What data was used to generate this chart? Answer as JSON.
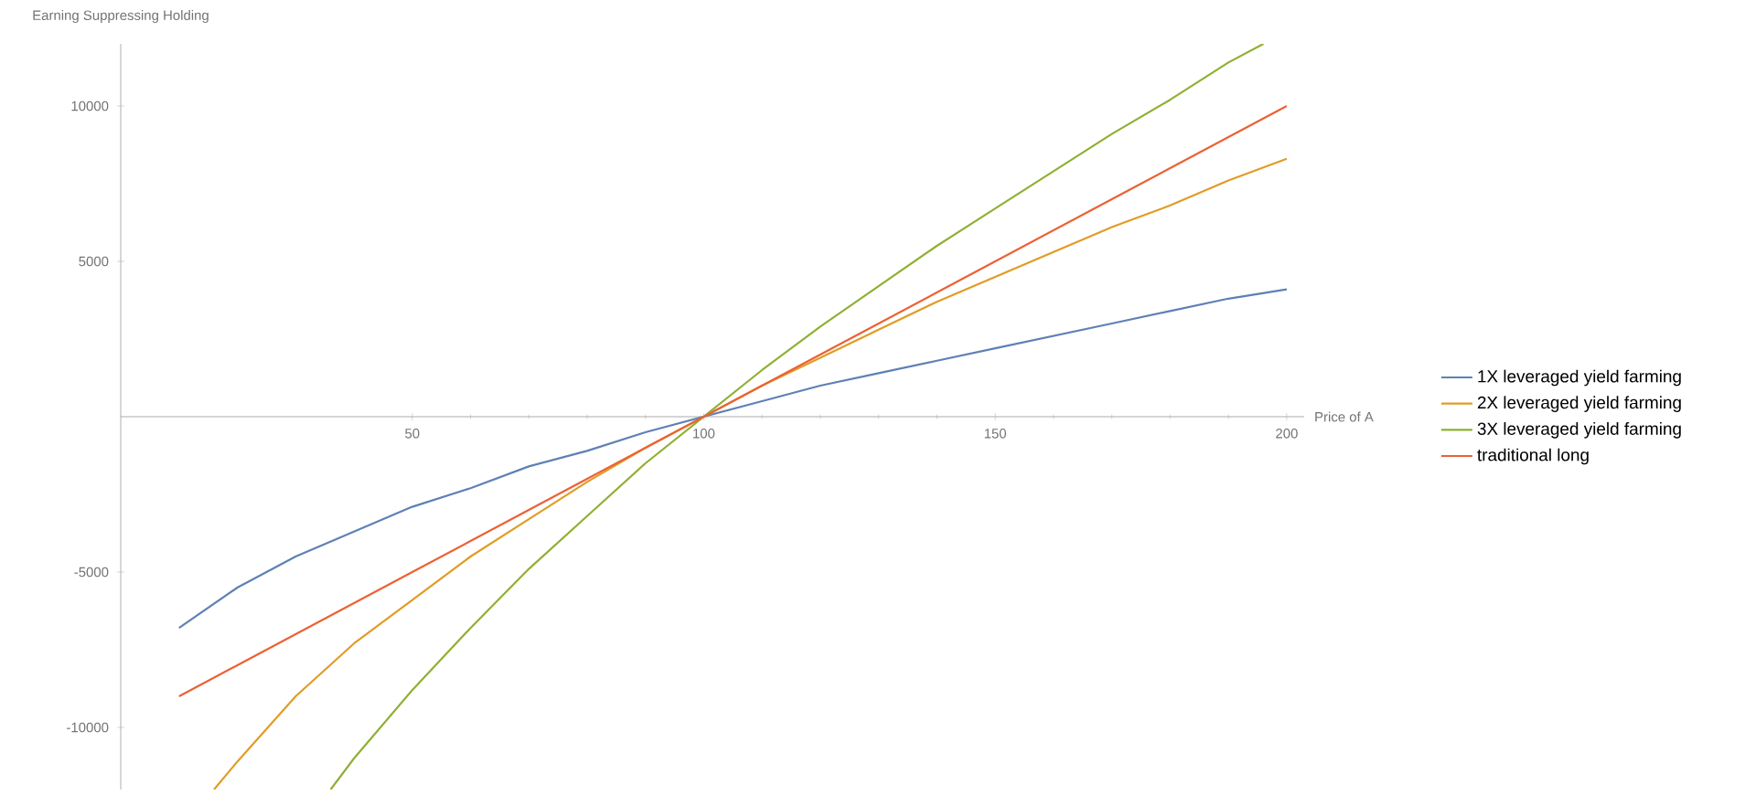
{
  "chart_data": {
    "type": "line",
    "xlabel": "Price of A",
    "ylabel": "Earning Suppressing Holding",
    "xlim": [
      0,
      203
    ],
    "ylim": [
      -12000,
      12000
    ],
    "xticks": [
      50,
      100,
      150,
      200
    ],
    "yticks": [
      -10000,
      -5000,
      5000,
      10000
    ],
    "legend": "right",
    "marker": "none",
    "series": [
      {
        "name": "1X leveraged yield farming",
        "color": "#5e81b5",
        "x": [
          10,
          20,
          30,
          40,
          50,
          60,
          70,
          80,
          90,
          100,
          110,
          120,
          130,
          140,
          150,
          160,
          170,
          180,
          190,
          200
        ],
        "values": [
          -6800,
          -5500,
          -4500,
          -3700,
          -2900,
          -2300,
          -1600,
          -1100,
          -500,
          0,
          500,
          1000,
          1400,
          1800,
          2200,
          2600,
          3000,
          3400,
          3800,
          4100
        ]
      },
      {
        "name": "2X leveraged yield farming",
        "color": "#e19c24",
        "x": [
          16,
          20,
          30,
          40,
          50,
          60,
          70,
          80,
          90,
          100,
          110,
          120,
          130,
          140,
          150,
          160,
          170,
          180,
          190,
          200
        ],
        "values": [
          -12000,
          -11100,
          -9000,
          -7300,
          -5900,
          -4500,
          -3300,
          -2100,
          -1000,
          0,
          1000,
          1900,
          2800,
          3700,
          4500,
          5300,
          6100,
          6800,
          7600,
          8300
        ]
      },
      {
        "name": "3X leveraged yield farming",
        "color": "#8fb032",
        "x": [
          36,
          40,
          50,
          60,
          70,
          80,
          90,
          100,
          110,
          120,
          130,
          140,
          150,
          160,
          170,
          180,
          190,
          196
        ],
        "values": [
          -12000,
          -11000,
          -8800,
          -6800,
          -4900,
          -3200,
          -1500,
          0,
          1500,
          2900,
          4200,
          5500,
          6700,
          7900,
          9100,
          10200,
          11400,
          12000
        ]
      },
      {
        "name": "traditional long",
        "color": "#eb6235",
        "x": [
          10,
          20,
          30,
          40,
          50,
          60,
          70,
          80,
          90,
          100,
          110,
          120,
          130,
          140,
          150,
          160,
          170,
          180,
          190,
          200
        ],
        "values": [
          -9000,
          -8000,
          -7000,
          -6000,
          -5000,
          -4000,
          -3000,
          -2000,
          -1000,
          0,
          1000,
          2000,
          3000,
          4000,
          5000,
          6000,
          7000,
          8000,
          9000,
          10000
        ]
      }
    ]
  }
}
